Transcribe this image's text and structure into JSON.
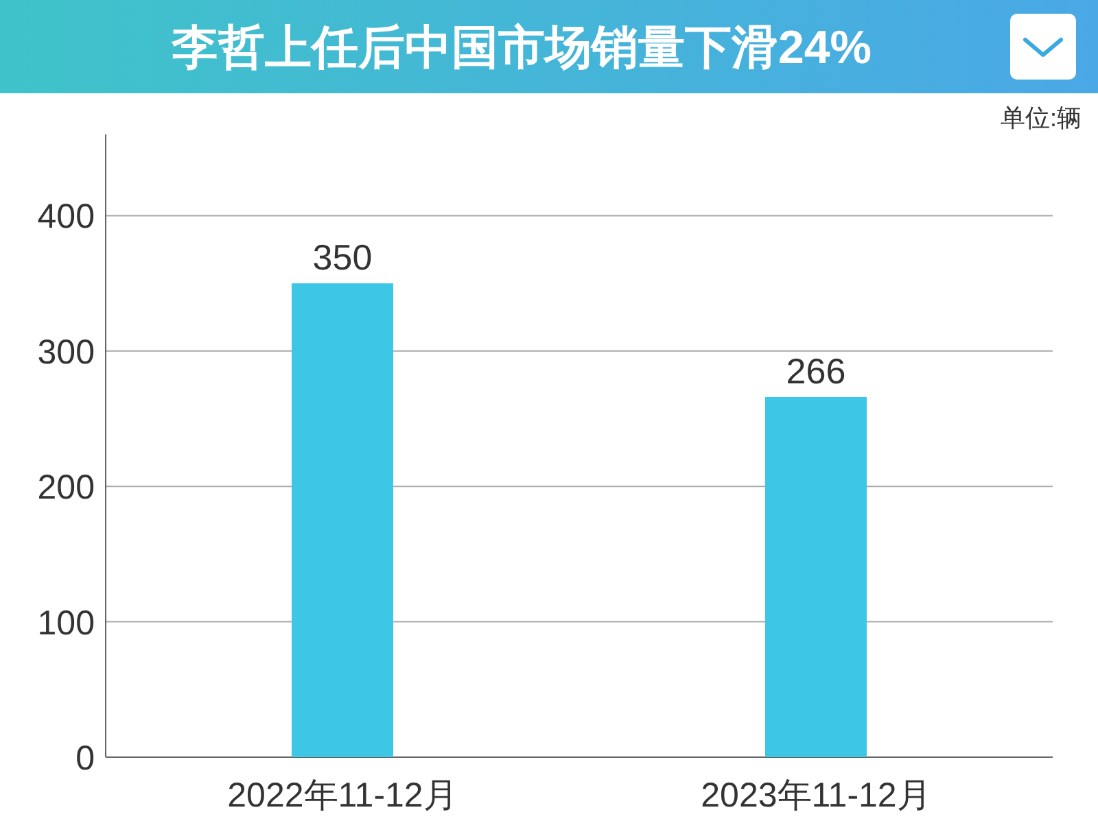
{
  "chart_data": {
    "type": "bar",
    "title": "李哲上任后中国市场销量下滑24%",
    "annotations": [
      "单位:辆"
    ],
    "categories": [
      "2022年11-12月",
      "2023年11-12月"
    ],
    "values": [
      350,
      266
    ],
    "color": "#3ec6e6",
    "ylim": [
      0,
      460
    ],
    "yticks": [
      0,
      100,
      200,
      300,
      400
    ],
    "grid": "y",
    "data_labels": true
  }
}
